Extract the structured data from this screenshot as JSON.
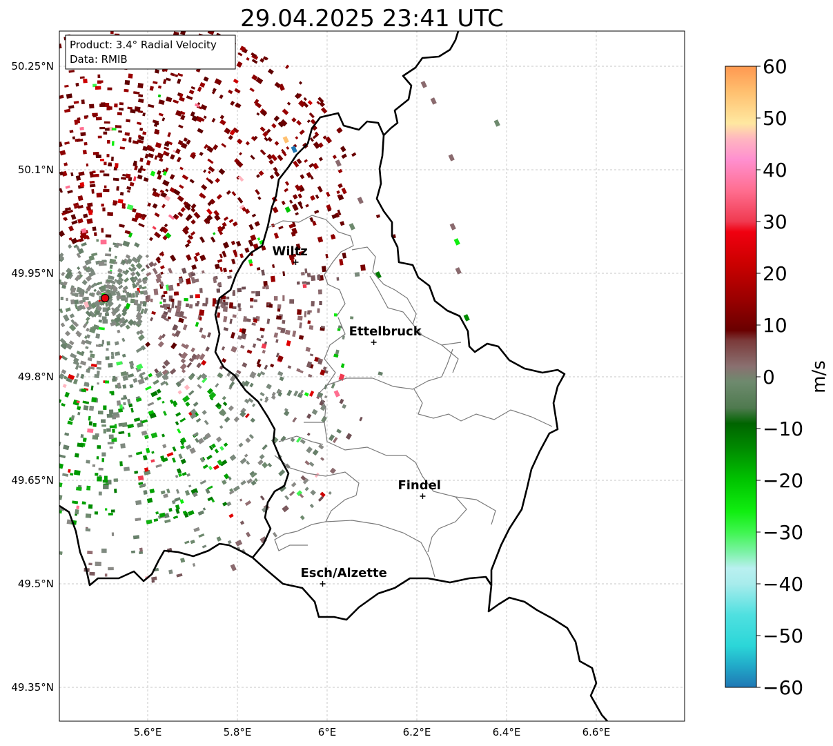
{
  "title": "29.04.2025 23:41 UTC",
  "info_box": {
    "product_line": "Product: 3.4° Radial Velocity",
    "data_line": "Data: RMIB"
  },
  "map": {
    "lon_range": [
      5.4,
      6.8
    ],
    "lat_range": [
      49.3,
      50.3
    ],
    "lon_ticks": [
      {
        "value": 5.6,
        "label": "5.6°E"
      },
      {
        "value": 5.8,
        "label": "5.8°E"
      },
      {
        "value": 6.0,
        "label": "6°E"
      },
      {
        "value": 6.2,
        "label": "6.2°E"
      },
      {
        "value": 6.4,
        "label": "6.4°E"
      },
      {
        "value": 6.6,
        "label": "6.6°E"
      }
    ],
    "lat_ticks": [
      {
        "value": 50.25,
        "label": "50.25°N"
      },
      {
        "value": 50.1,
        "label": "50.1°N"
      },
      {
        "value": 49.95,
        "label": "49.95°N"
      },
      {
        "value": 49.8,
        "label": "49.8°N"
      },
      {
        "value": 49.65,
        "label": "49.65°N"
      },
      {
        "value": 49.5,
        "label": "49.5°N"
      },
      {
        "value": 49.35,
        "label": "49.35°N"
      }
    ],
    "grid": true,
    "radar_site": {
      "lon": 5.505,
      "lat": 49.914,
      "color": "#e8000b"
    },
    "cities": [
      {
        "name": "Wiltz",
        "lon": 5.93,
        "lat": 49.966
      },
      {
        "name": "Ettelbruck",
        "lon": 6.104,
        "lat": 49.85
      },
      {
        "name": "Findel",
        "lon": 6.213,
        "lat": 49.627
      },
      {
        "name": "Esch/Alzette",
        "lon": 5.99,
        "lat": 49.5
      }
    ]
  },
  "colorbar": {
    "label": "m/s",
    "min": -60,
    "max": 60,
    "ticks": [
      {
        "value": 60,
        "label": "60"
      },
      {
        "value": 50,
        "label": "50"
      },
      {
        "value": 40,
        "label": "40"
      },
      {
        "value": 30,
        "label": "30"
      },
      {
        "value": 20,
        "label": "20"
      },
      {
        "value": 10,
        "label": "10"
      },
      {
        "value": 0,
        "label": "0"
      },
      {
        "value": -10,
        "label": "−10"
      },
      {
        "value": -20,
        "label": "−20"
      },
      {
        "value": -30,
        "label": "−30"
      },
      {
        "value": -40,
        "label": "−40"
      },
      {
        "value": -50,
        "label": "−50"
      },
      {
        "value": -60,
        "label": "−60"
      }
    ],
    "color_stops": [
      {
        "value": -60,
        "color": "#1f77b4"
      },
      {
        "value": -56,
        "color": "#21a8c8"
      },
      {
        "value": -52,
        "color": "#2bd6d8"
      },
      {
        "value": -46,
        "color": "#4fe0e0"
      },
      {
        "value": -40,
        "color": "#a8ecec"
      },
      {
        "value": -37,
        "color": "#b9f0f0"
      },
      {
        "value": -34,
        "color": "#7ef2a8"
      },
      {
        "value": -30,
        "color": "#3ff550"
      },
      {
        "value": -26,
        "color": "#10ee10"
      },
      {
        "value": -20,
        "color": "#00c400"
      },
      {
        "value": -14,
        "color": "#008c00"
      },
      {
        "value": -9,
        "color": "#006400"
      },
      {
        "value": -6,
        "color": "#4f7a4f"
      },
      {
        "value": -1,
        "color": "#6e8a6e"
      },
      {
        "value": 2,
        "color": "#8a7070"
      },
      {
        "value": 7,
        "color": "#7b3a3a"
      },
      {
        "value": 9,
        "color": "#6a0000"
      },
      {
        "value": 15,
        "color": "#9a0000"
      },
      {
        "value": 22,
        "color": "#cc0000"
      },
      {
        "value": 28,
        "color": "#f00010"
      },
      {
        "value": 30,
        "color": "#f03a50"
      },
      {
        "value": 36,
        "color": "#ff6e90"
      },
      {
        "value": 42,
        "color": "#ff90d0"
      },
      {
        "value": 46,
        "color": "#ffb6c0"
      },
      {
        "value": 49,
        "color": "#ffe8a0"
      },
      {
        "value": 55,
        "color": "#ffc070"
      },
      {
        "value": 60,
        "color": "#ff9850"
      }
    ]
  }
}
